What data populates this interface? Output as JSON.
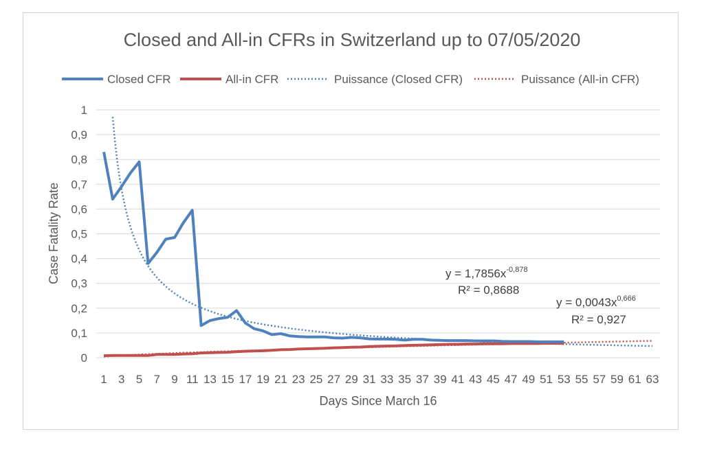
{
  "chart_data": {
    "type": "line",
    "title": "Closed and All-in CFRs in Switzerland up to 07/05/2020",
    "xlabel": "Days Since March 16",
    "ylabel": "Case Fatality Rate",
    "xlim": [
      1,
      63
    ],
    "ylim": [
      0,
      1
    ],
    "x_ticks": [
      "1",
      "3",
      "5",
      "7",
      "9",
      "11",
      "13",
      "15",
      "17",
      "19",
      "21",
      "23",
      "25",
      "27",
      "29",
      "31",
      "33",
      "35",
      "37",
      "39",
      "41",
      "43",
      "45",
      "47",
      "49",
      "51",
      "53",
      "55",
      "57",
      "59",
      "61",
      "63"
    ],
    "y_ticks": [
      "0",
      "0,1",
      "0,2",
      "0,3",
      "0,4",
      "0,5",
      "0,6",
      "0,7",
      "0,8",
      "0,9",
      "1"
    ],
    "grid": true,
    "legend": [
      {
        "name": "Closed CFR",
        "color": "#4f81bd",
        "style": "solid"
      },
      {
        "name": "All-in CFR",
        "color": "#c0504d",
        "style": "solid"
      },
      {
        "name": "Puissance (Closed CFR)",
        "color": "#4f81bd",
        "style": "dotted"
      },
      {
        "name": "Puissance (All-in CFR)",
        "color": "#c0504d",
        "style": "dotted"
      }
    ],
    "series": [
      {
        "name": "Closed CFR",
        "color": "#4f81bd",
        "x": [
          1,
          2,
          3,
          4,
          5,
          6,
          7,
          8,
          9,
          10,
          11,
          12,
          13,
          14,
          15,
          16,
          17,
          18,
          19,
          20,
          21,
          22,
          23,
          24,
          25,
          26,
          27,
          28,
          29,
          30,
          31,
          32,
          33,
          34,
          35,
          36,
          37,
          38,
          39,
          40,
          41,
          42,
          43,
          44,
          45,
          46,
          47,
          48,
          49,
          50,
          51,
          52,
          53
        ],
        "values": [
          0.83,
          0.64,
          0.69,
          0.745,
          0.79,
          0.38,
          0.425,
          0.478,
          0.485,
          0.545,
          0.595,
          0.13,
          0.15,
          0.158,
          0.163,
          0.19,
          0.14,
          0.117,
          0.108,
          0.093,
          0.097,
          0.088,
          0.085,
          0.084,
          0.084,
          0.084,
          0.08,
          0.079,
          0.082,
          0.08,
          0.076,
          0.075,
          0.075,
          0.074,
          0.071,
          0.074,
          0.074,
          0.071,
          0.07,
          0.069,
          0.069,
          0.069,
          0.068,
          0.068,
          0.068,
          0.066,
          0.065,
          0.065,
          0.065,
          0.064,
          0.064,
          0.064,
          0.064
        ]
      },
      {
        "name": "All-in CFR",
        "color": "#c0504d",
        "x": [
          1,
          2,
          3,
          4,
          5,
          6,
          7,
          8,
          9,
          10,
          11,
          12,
          13,
          14,
          15,
          16,
          17,
          18,
          19,
          20,
          21,
          22,
          23,
          24,
          25,
          26,
          27,
          28,
          29,
          30,
          31,
          32,
          33,
          34,
          35,
          36,
          37,
          38,
          39,
          40,
          41,
          42,
          43,
          44,
          45,
          46,
          47,
          48,
          49,
          50,
          51,
          52,
          53
        ],
        "values": [
          0.008,
          0.009,
          0.009,
          0.009,
          0.009,
          0.009,
          0.013,
          0.013,
          0.013,
          0.015,
          0.016,
          0.019,
          0.02,
          0.021,
          0.022,
          0.024,
          0.026,
          0.027,
          0.028,
          0.03,
          0.032,
          0.033,
          0.035,
          0.036,
          0.037,
          0.038,
          0.04,
          0.041,
          0.042,
          0.043,
          0.045,
          0.046,
          0.047,
          0.048,
          0.049,
          0.05,
          0.051,
          0.052,
          0.053,
          0.054,
          0.054,
          0.055,
          0.055,
          0.056,
          0.056,
          0.056,
          0.057,
          0.057,
          0.057,
          0.057,
          0.058,
          0.058,
          0.058
        ]
      }
    ],
    "trendlines": [
      {
        "name": "Puissance (Closed CFR)",
        "color": "#4f81bd",
        "coef": 1.7856,
        "exp": -0.878,
        "x_range": [
          2,
          63
        ]
      },
      {
        "name": "Puissance (All-in CFR)",
        "color": "#c0504d",
        "coef": 0.0043,
        "exp": 0.666,
        "x_range": [
          1,
          63
        ]
      }
    ],
    "annotations": [
      {
        "eq_base": "y = 1,7856x",
        "eq_exp": "-0,878",
        "r2": "R² = 0,8688"
      },
      {
        "eq_base": "y = 0,0043x",
        "eq_exp": "0,666",
        "r2": "R² = 0,927"
      }
    ]
  }
}
